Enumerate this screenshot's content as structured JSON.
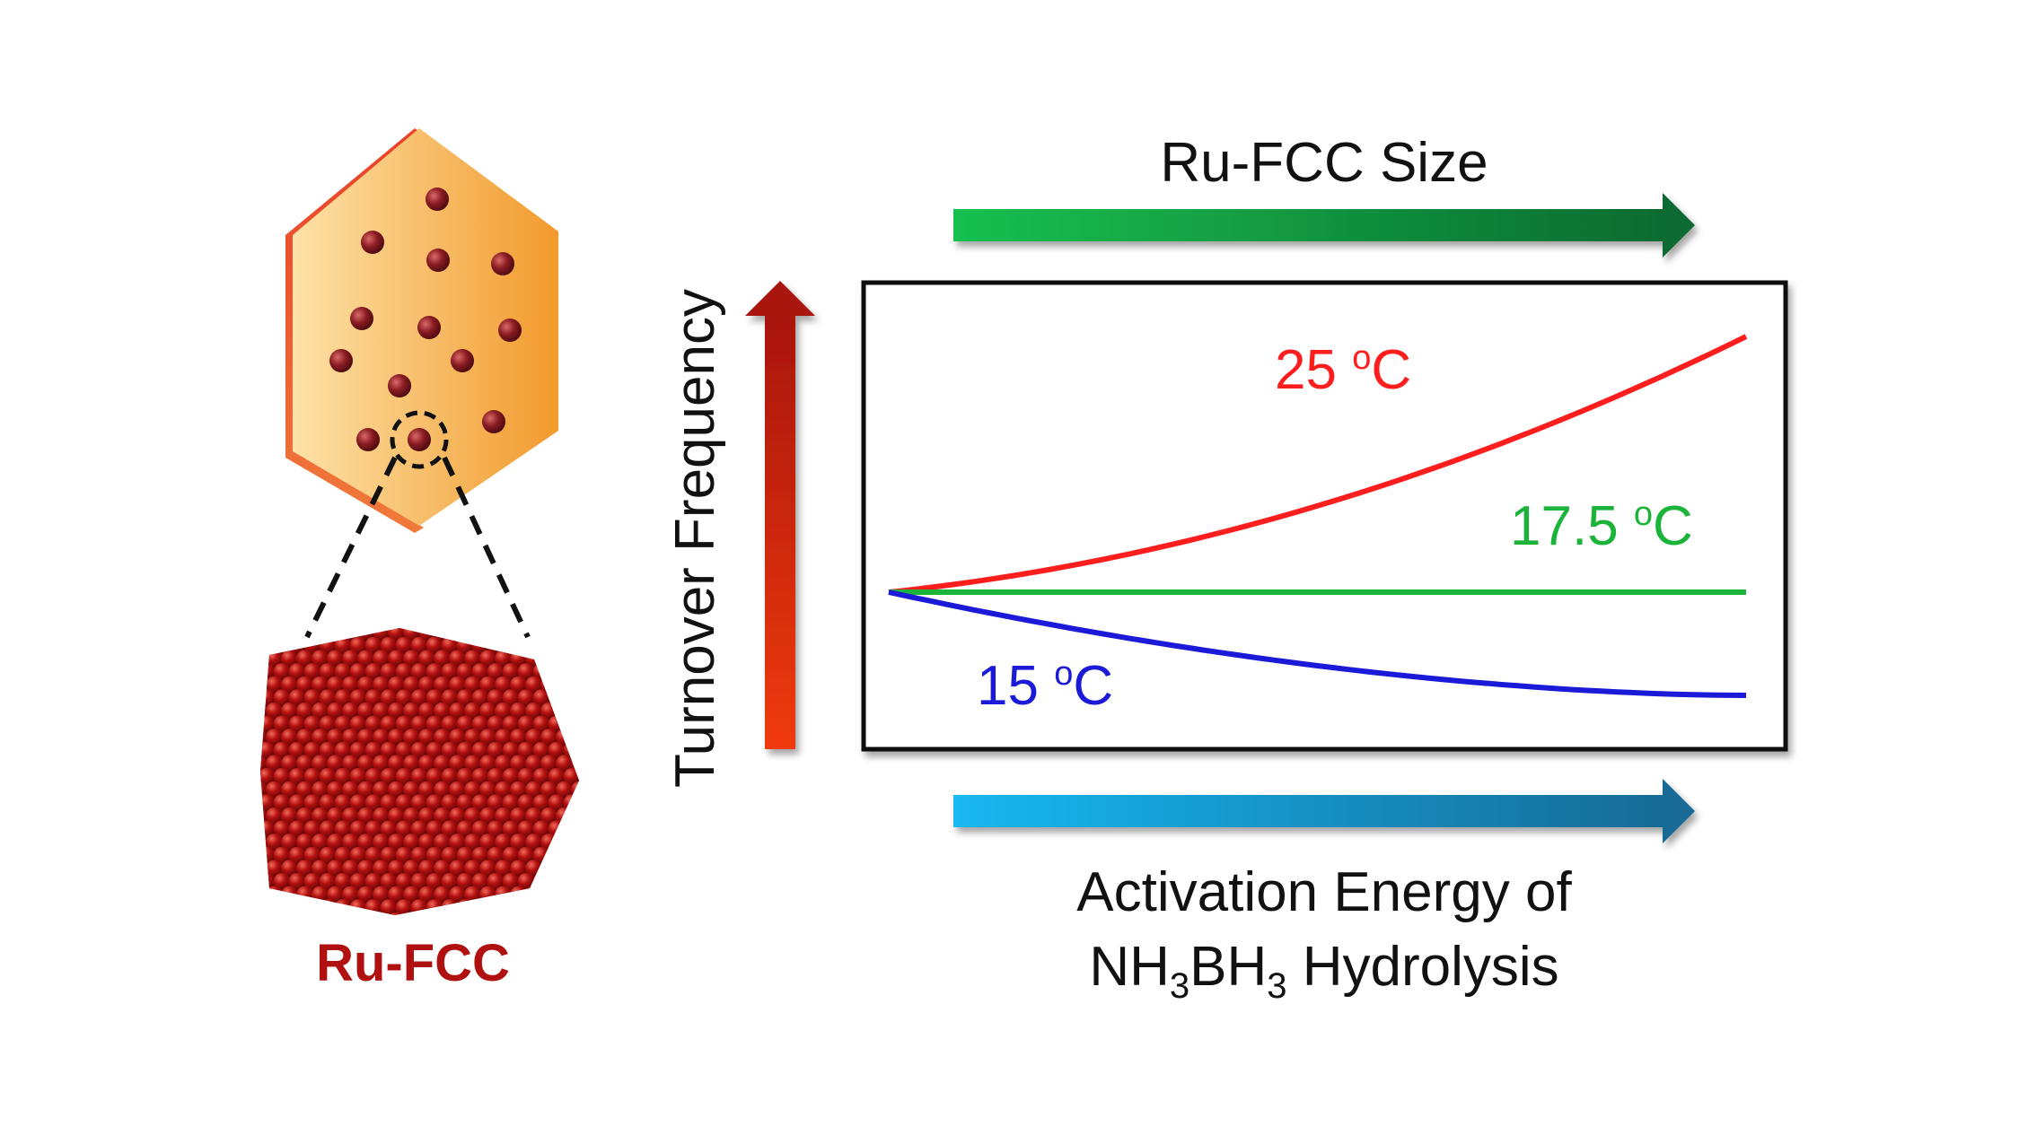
{
  "catalyst": {
    "label": "Ru-FCC",
    "label_color": "#b01010",
    "plate_color": "#f5a640",
    "particle_color": "#8a1c22",
    "cluster_color": "#9e0f0f"
  },
  "axes": {
    "y_label": "Turnover Frequency",
    "top_arrow_label": "Ru-FCC Size",
    "bottom_arrow_label_line1": "Activation Energy of",
    "bottom_formula": {
      "p1": "NH",
      "s1": "3",
      "p2": "BH",
      "s2": "3",
      "p3": " Hydrolysis"
    }
  },
  "arrow_colors": {
    "y_arrow": [
      "#f03a10",
      "#a8150e"
    ],
    "top_arrow": [
      "#15c050",
      "#0e6a30"
    ],
    "bottom_arrow": [
      "#1ab8f2",
      "#126a95"
    ]
  },
  "curves": [
    {
      "id": "t25",
      "number": "25",
      "unit_sup": "o",
      "unit": "C",
      "color": "#ff1e1e",
      "trend": "increasing"
    },
    {
      "id": "t175",
      "number": "17.5",
      "unit_sup": "o",
      "unit": "C",
      "color": "#1cb33a",
      "trend": "flat"
    },
    {
      "id": "t15",
      "number": "15",
      "unit_sup": "o",
      "unit": "C",
      "color": "#1a1ad8",
      "trend": "decreasing"
    }
  ]
}
